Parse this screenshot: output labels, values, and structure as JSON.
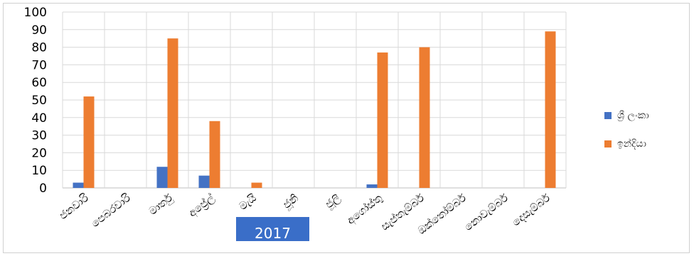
{
  "chart_data": {
    "type": "bar",
    "title": "",
    "xlabel": "",
    "ylabel": "",
    "ylim": [
      0,
      100
    ],
    "yticks": [
      0,
      10,
      20,
      30,
      40,
      50,
      60,
      70,
      80,
      90,
      100
    ],
    "categories": [
      "ජනවාරි",
      "පෙබරවාරි",
      "මාර්තු",
      "අප්‍රේල්",
      "මැයි",
      "ජූනි",
      "ජූලි",
      "අගෝස්තු",
      "සැප්තැම්බර්",
      "ඔක්තෝම්බර්",
      "නොවැම්බර්",
      "දෙසැම්බර්"
    ],
    "series": [
      {
        "name": "ශ්‍රී ලංකා",
        "color": "#4472c4",
        "values": [
          3,
          0,
          12,
          7,
          0,
          0,
          0,
          2,
          0,
          0,
          0,
          0
        ]
      },
      {
        "name": "ඉන්දියා",
        "color": "#ed7d31",
        "values": [
          52,
          0,
          85,
          38,
          3,
          0,
          0,
          77,
          80,
          0,
          0,
          89
        ]
      }
    ],
    "grid": true,
    "legend_position": "right",
    "annotation": "2017"
  }
}
